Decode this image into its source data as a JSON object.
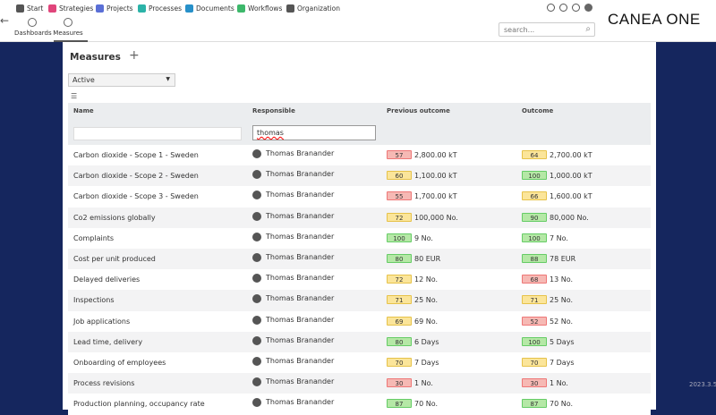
{
  "nav": [
    "Start",
    "Strategies",
    "Projects",
    "Processes",
    "Documents",
    "Workflows",
    "Organization"
  ],
  "subnav": [
    "Dashboards",
    "Measures"
  ],
  "search_placeholder": "search...",
  "brand": "CANEA ONE",
  "version": "2023.3.5",
  "page_title": "Measures",
  "status_filter": "Active",
  "columns": [
    "Name",
    "Responsible",
    "Previous outcome",
    "Outcome"
  ],
  "responsible_filter": "thomas",
  "rows": [
    {
      "name": "Carbon dioxide - Scope 1 - Sweden",
      "responsible": "Thomas Branander",
      "prev_score": 57,
      "prev_status": "red",
      "prev_value": "2,800.00 kT",
      "score": 64,
      "status": "yellow",
      "value": "2,700.00 kT"
    },
    {
      "name": "Carbon dioxide - Scope 2 - Sweden",
      "responsible": "Thomas Branander",
      "prev_score": 60,
      "prev_status": "yellow",
      "prev_value": "1,100.00 kT",
      "score": 100,
      "status": "green",
      "value": "1,000.00 kT"
    },
    {
      "name": "Carbon dioxide - Scope 3 - Sweden",
      "responsible": "Thomas Branander",
      "prev_score": 55,
      "prev_status": "red",
      "prev_value": "1,700.00 kT",
      "score": 66,
      "status": "yellow",
      "value": "1,600.00 kT"
    },
    {
      "name": "Co2 emissions globally",
      "responsible": "Thomas Branander",
      "prev_score": 72,
      "prev_status": "yellow",
      "prev_value": "100,000 No.",
      "score": 90,
      "status": "green",
      "value": "80,000 No."
    },
    {
      "name": "Complaints",
      "responsible": "Thomas Branander",
      "prev_score": 100,
      "prev_status": "green",
      "prev_value": "9 No.",
      "score": 100,
      "status": "green",
      "value": "7 No."
    },
    {
      "name": "Cost per unit produced",
      "responsible": "Thomas Branander",
      "prev_score": 80,
      "prev_status": "green",
      "prev_value": "80 EUR",
      "score": 88,
      "status": "green",
      "value": "78 EUR"
    },
    {
      "name": "Delayed deliveries",
      "responsible": "Thomas Branander",
      "prev_score": 72,
      "prev_status": "yellow",
      "prev_value": "12 No.",
      "score": 68,
      "status": "red",
      "value": "13 No."
    },
    {
      "name": "Inspections",
      "responsible": "Thomas Branander",
      "prev_score": 71,
      "prev_status": "yellow",
      "prev_value": "25 No.",
      "score": 71,
      "status": "yellow",
      "value": "25 No."
    },
    {
      "name": "Job applications",
      "responsible": "Thomas Branander",
      "prev_score": 69,
      "prev_status": "yellow",
      "prev_value": "69 No.",
      "score": 52,
      "status": "red",
      "value": "52 No."
    },
    {
      "name": "Lead time, delivery",
      "responsible": "Thomas Branander",
      "prev_score": 80,
      "prev_status": "green",
      "prev_value": "6 Days",
      "score": 100,
      "status": "green",
      "value": "5 Days"
    },
    {
      "name": "Onboarding of employees",
      "responsible": "Thomas Branander",
      "prev_score": 70,
      "prev_status": "yellow",
      "prev_value": "7 Days",
      "score": 70,
      "status": "yellow",
      "value": "7 Days"
    },
    {
      "name": "Process revisions",
      "responsible": "Thomas Branander",
      "prev_score": 30,
      "prev_status": "red",
      "prev_value": "1 No.",
      "score": 30,
      "status": "red",
      "value": "1 No."
    },
    {
      "name": "Production planning, occupancy rate",
      "responsible": "Thomas Branander",
      "prev_score": 87,
      "prev_status": "green",
      "prev_value": "70 No.",
      "score": 87,
      "status": "green",
      "value": "70 No."
    }
  ]
}
